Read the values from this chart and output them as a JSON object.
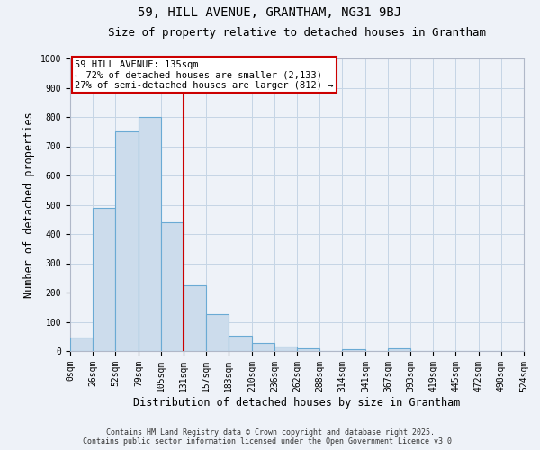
{
  "title_line1": "59, HILL AVENUE, GRANTHAM, NG31 9BJ",
  "title_line2": "Size of property relative to detached houses in Grantham",
  "xlabel": "Distribution of detached houses by size in Grantham",
  "ylabel": "Number of detached properties",
  "bin_labels": [
    "0sqm",
    "26sqm",
    "52sqm",
    "79sqm",
    "105sqm",
    "131sqm",
    "157sqm",
    "183sqm",
    "210sqm",
    "236sqm",
    "262sqm",
    "288sqm",
    "314sqm",
    "341sqm",
    "367sqm",
    "393sqm",
    "419sqm",
    "445sqm",
    "472sqm",
    "498sqm",
    "524sqm"
  ],
  "bin_edges": [
    0,
    26,
    52,
    79,
    105,
    131,
    157,
    183,
    210,
    236,
    262,
    288,
    314,
    341,
    367,
    393,
    419,
    445,
    472,
    498,
    524
  ],
  "bar_values": [
    45,
    490,
    750,
    800,
    440,
    225,
    127,
    52,
    28,
    15,
    10,
    0,
    5,
    0,
    10,
    0,
    0,
    0,
    0,
    0
  ],
  "bar_color": "#ccdcec",
  "bar_edgecolor": "#6aaad4",
  "grid_color": "#c5d5e5",
  "background_color": "#eef2f8",
  "vline_x": 131,
  "vline_color": "#cc0000",
  "ylim": [
    0,
    1000
  ],
  "annotation_text": "59 HILL AVENUE: 135sqm\n← 72% of detached houses are smaller (2,133)\n27% of semi-detached houses are larger (812) →",
  "annotation_box_facecolor": "#ffffff",
  "annotation_box_edgecolor": "#cc0000",
  "annotation_fontsize": 7.5,
  "title1_fontsize": 10,
  "title2_fontsize": 9,
  "axis_label_fontsize": 8.5,
  "tick_fontsize": 7,
  "footer_fontsize": 6,
  "footer_line1": "Contains HM Land Registry data © Crown copyright and database right 2025.",
  "footer_line2": "Contains public sector information licensed under the Open Government Licence v3.0.",
  "yticks": [
    0,
    100,
    200,
    300,
    400,
    500,
    600,
    700,
    800,
    900,
    1000
  ]
}
